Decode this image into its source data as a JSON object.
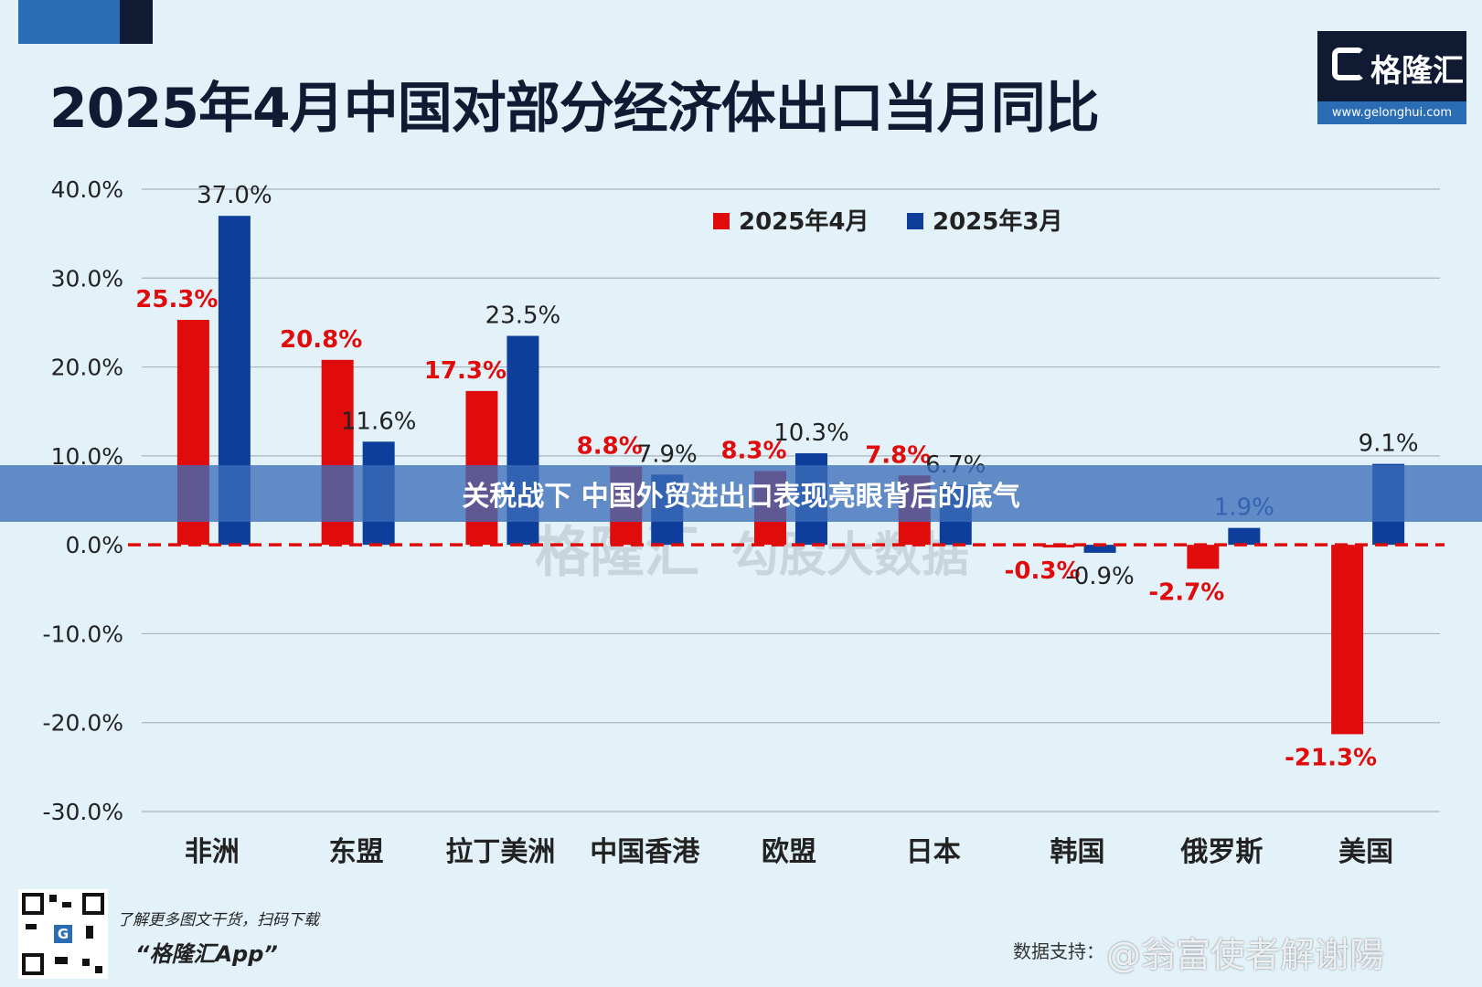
{
  "header": {
    "title": "2025年4月中国对部分经济体出口当月同比"
  },
  "logo": {
    "name": "格隆汇",
    "url": "www.gelonghui.com"
  },
  "banner": {
    "text": "关税战下 中国外贸进出口表现亮眼背后的底气"
  },
  "footer": {
    "promo_line1": "了解更多图文干货，扫码下载",
    "promo_line2": "“格隆汇App”",
    "source": "数据支持：",
    "weibo_watermark": "@翁富使者解谢陽"
  },
  "colors": {
    "apr": "#e00c0c",
    "mar": "#0e3e9b",
    "background": "#e3f1f9",
    "title": "#101a33"
  },
  "chart_data": {
    "type": "bar",
    "title": "2025年4月中国对部分经济体出口当月同比",
    "categories": [
      "非洲",
      "东盟",
      "拉丁美洲",
      "中国香港",
      "欧盟",
      "日本",
      "韩国",
      "俄罗斯",
      "美国"
    ],
    "series": [
      {
        "name": "2025年4月",
        "color": "#e00c0c",
        "values": [
          25.3,
          20.8,
          17.3,
          8.8,
          8.3,
          7.8,
          -0.3,
          -2.7,
          -21.3
        ],
        "labels": [
          "25.3%",
          "20.8%",
          "17.3%",
          "8.8%",
          "8.3%",
          "7.8%",
          "-0.3%",
          "-2.7%",
          "-21.3%"
        ]
      },
      {
        "name": "2025年3月",
        "color": "#0e3e9b",
        "values": [
          37.0,
          11.6,
          23.5,
          7.9,
          10.3,
          6.7,
          -0.9,
          1.9,
          9.1
        ],
        "labels": [
          "37.0%",
          "11.6%",
          "23.5%",
          "7.9%",
          "10.3%",
          "6.7%",
          "-0.9%",
          "1.9%",
          "9.1%"
        ]
      }
    ],
    "yticks": [
      "40.0%",
      "30.0%",
      "20.0%",
      "10.0%",
      "0.0%",
      "-10.0%",
      "-20.0%",
      "-30.0%"
    ],
    "ylim": [
      -30,
      40
    ],
    "grid": true,
    "legend": "top"
  }
}
